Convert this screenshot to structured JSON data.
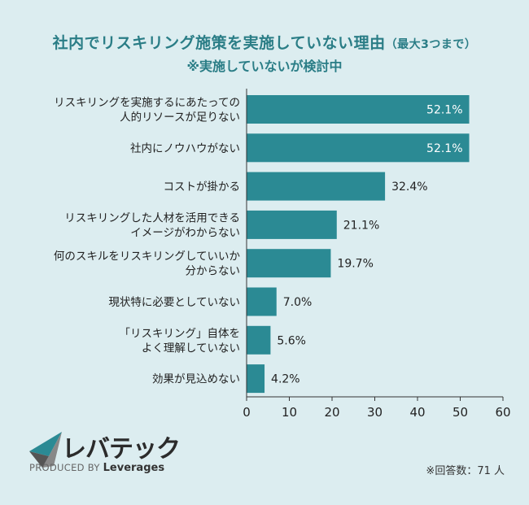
{
  "header": {
    "title": "社内でリスキリング施策を実施していない理由",
    "title_suffix": "（最大3つまで）",
    "subtitle": "※実施していないが検討中"
  },
  "chart_data": {
    "type": "bar",
    "orientation": "horizontal",
    "categories": [
      "リスキリングを実施するにあたっての\n人的リソースが足りない",
      "社内にノウハウがない",
      "コストが掛かる",
      "リスキリングした人材を活用できる\nイメージがわからない",
      "何のスキルをリスキリングしていいか\n分からない",
      "現状特に必要としていない",
      "「リスキリング」自体を\nよく理解していない",
      "効果が見込めない"
    ],
    "values": [
      52.1,
      52.1,
      32.4,
      21.1,
      19.7,
      7.0,
      5.6,
      4.2
    ],
    "value_labels": [
      "52.1%",
      "52.1%",
      "32.4%",
      "21.1%",
      "19.7%",
      "7.0%",
      "5.6%",
      "4.2%"
    ],
    "xlim": [
      0,
      60
    ],
    "xticks": [
      0,
      10,
      20,
      30,
      40,
      50,
      60
    ],
    "grid": false,
    "bar_color": "#2b8a94"
  },
  "footer": {
    "logo_text": "レバテック",
    "produced_by": "PRODUCED BY",
    "brand": "Leverages",
    "note": "※回答数：71 人"
  }
}
